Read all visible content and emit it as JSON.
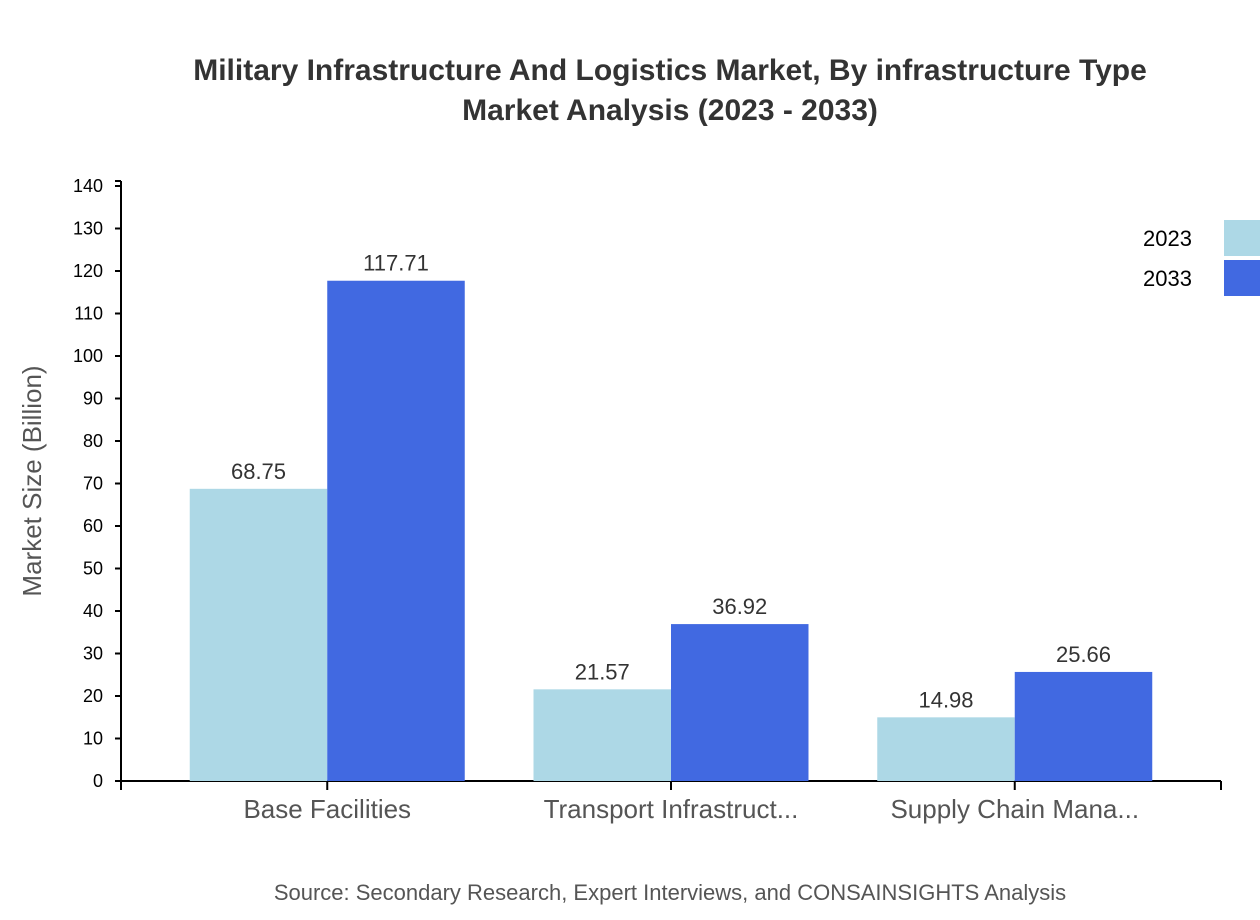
{
  "chart_data": {
    "type": "bar",
    "title": "Military Infrastructure And Logistics Market, By infrastructure Type",
    "subtitle": "Market Analysis (2023 - 2033)",
    "xlabel": "",
    "ylabel": "Market Size (Billion)",
    "ylim": [
      0,
      140
    ],
    "yticks": [
      0,
      10,
      20,
      30,
      40,
      50,
      60,
      70,
      80,
      90,
      100,
      110,
      120,
      130,
      140
    ],
    "categories": [
      "Base Facilities",
      "Transport Infrastruct...",
      "Supply Chain Mana..."
    ],
    "series": [
      {
        "name": "2023",
        "color": "#ADD8E6",
        "values": [
          68.75,
          21.57,
          14.98
        ]
      },
      {
        "name": "2033",
        "color": "#4169E1",
        "values": [
          117.71,
          36.92,
          25.66
        ]
      }
    ],
    "legend_position": "top-right",
    "grid": false
  },
  "source": "Source: Secondary Research, Expert Interviews, and CONSAINSIGHTS Analysis"
}
